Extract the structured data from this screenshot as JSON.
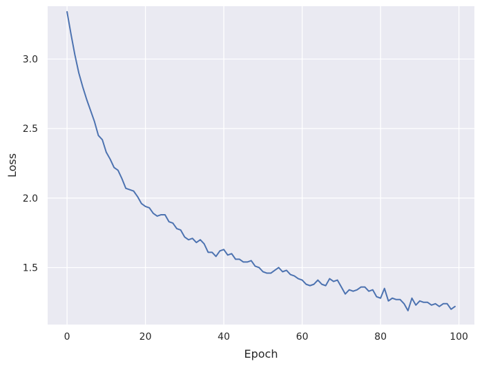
{
  "chart_data": {
    "type": "line",
    "xlabel": "Epoch",
    "ylabel": "Loss",
    "xlim": [
      -4.95,
      103.95
    ],
    "ylim": [
      1.09,
      3.38
    ],
    "xticks": [
      0,
      20,
      40,
      60,
      80,
      100
    ],
    "yticks": [
      1.5,
      2.0,
      2.5,
      3.0
    ],
    "grid": true,
    "colors": {
      "background": "#eaeaf2",
      "grid": "#ffffff",
      "line": "#4c72b0",
      "text": "#262626"
    },
    "series": [
      {
        "x": [
          0,
          1,
          2,
          3,
          4,
          5,
          6,
          7,
          8,
          9,
          10,
          11,
          12,
          13,
          14,
          15,
          16,
          17,
          18,
          19,
          20,
          21,
          22,
          23,
          24,
          25,
          26,
          27,
          28,
          29,
          30,
          31,
          32,
          33,
          34,
          35,
          36,
          37,
          38,
          39,
          40,
          41,
          42,
          43,
          44,
          45,
          46,
          47,
          48,
          49,
          50,
          51,
          52,
          53,
          54,
          55,
          56,
          57,
          58,
          59,
          60,
          61,
          62,
          63,
          64,
          65,
          66,
          67,
          68,
          69,
          70,
          71,
          72,
          73,
          74,
          75,
          76,
          77,
          78,
          79,
          80,
          81,
          82,
          83,
          84,
          85,
          86,
          87,
          88,
          89,
          90,
          91,
          92,
          93,
          94,
          95,
          96,
          97,
          98,
          99
        ],
        "values": [
          3.34,
          3.18,
          3.03,
          2.9,
          2.8,
          2.71,
          2.63,
          2.55,
          2.45,
          2.42,
          2.33,
          2.28,
          2.22,
          2.2,
          2.14,
          2.07,
          2.06,
          2.05,
          2.01,
          1.96,
          1.94,
          1.93,
          1.89,
          1.87,
          1.88,
          1.88,
          1.83,
          1.82,
          1.78,
          1.77,
          1.72,
          1.7,
          1.71,
          1.68,
          1.7,
          1.67,
          1.61,
          1.61,
          1.58,
          1.62,
          1.63,
          1.59,
          1.6,
          1.56,
          1.56,
          1.54,
          1.54,
          1.55,
          1.51,
          1.5,
          1.47,
          1.46,
          1.46,
          1.48,
          1.5,
          1.47,
          1.48,
          1.45,
          1.44,
          1.42,
          1.41,
          1.38,
          1.37,
          1.38,
          1.41,
          1.38,
          1.37,
          1.42,
          1.4,
          1.41,
          1.36,
          1.31,
          1.34,
          1.33,
          1.34,
          1.36,
          1.36,
          1.33,
          1.34,
          1.29,
          1.28,
          1.35,
          1.26,
          1.28,
          1.27,
          1.27,
          1.24,
          1.19,
          1.28,
          1.23,
          1.26,
          1.25,
          1.25,
          1.23,
          1.24,
          1.22,
          1.24,
          1.24,
          1.2,
          1.22
        ]
      }
    ]
  }
}
